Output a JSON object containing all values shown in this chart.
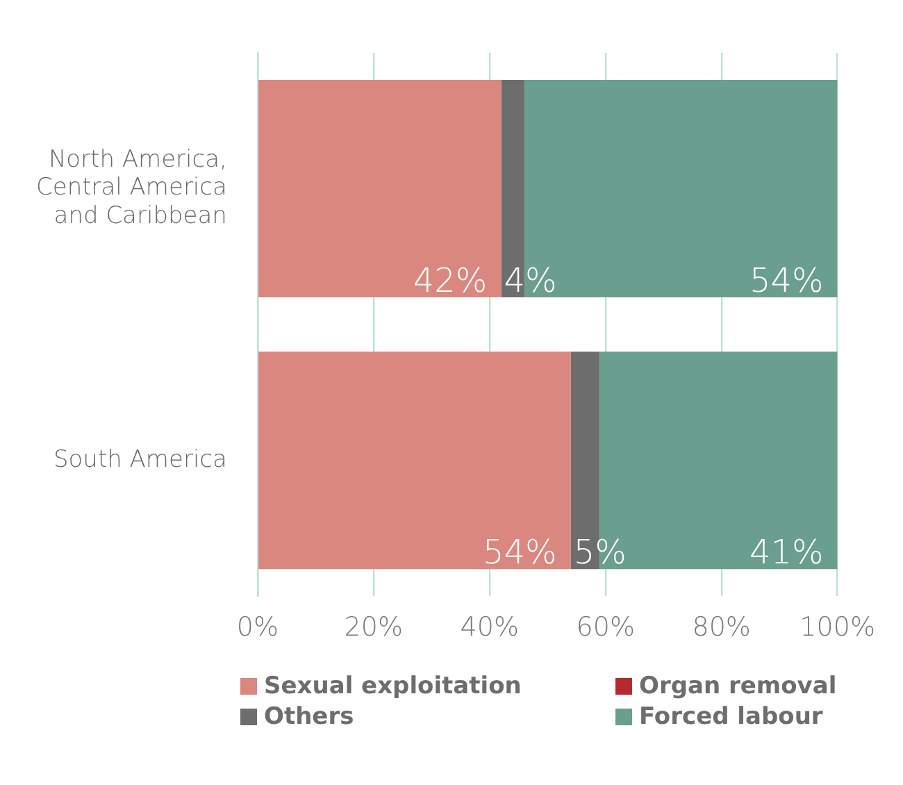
{
  "chart_data": {
    "type": "bar",
    "orientation": "horizontal",
    "stacked": true,
    "categories": [
      "North America, Central America and Caribbean",
      "South America"
    ],
    "series": [
      {
        "name": "Sexual exploitation",
        "color": "#d9877f",
        "values": [
          42,
          54
        ],
        "value_labels": [
          "42%",
          "54%"
        ]
      },
      {
        "name": "Organ removal",
        "color": "#b5292f",
        "values": [
          0,
          0
        ],
        "value_labels": [
          null,
          null
        ]
      },
      {
        "name": "Others",
        "color": "#6d6d6d",
        "values": [
          4,
          5
        ],
        "value_labels": [
          "4%",
          "5%"
        ]
      },
      {
        "name": "Forced labour",
        "color": "#6a9e8e",
        "values": [
          54,
          41
        ],
        "value_labels": [
          "54%",
          "41%"
        ]
      }
    ],
    "xlim": [
      0,
      100
    ],
    "xticks": [
      {
        "value": 0,
        "label": "0%"
      },
      {
        "value": 20,
        "label": "20%"
      },
      {
        "value": 40,
        "label": "40%"
      },
      {
        "value": 60,
        "label": "60%"
      },
      {
        "value": 80,
        "label": "80%"
      },
      {
        "value": 100,
        "label": "100%"
      }
    ],
    "grid": "x",
    "legend": "bottom"
  }
}
